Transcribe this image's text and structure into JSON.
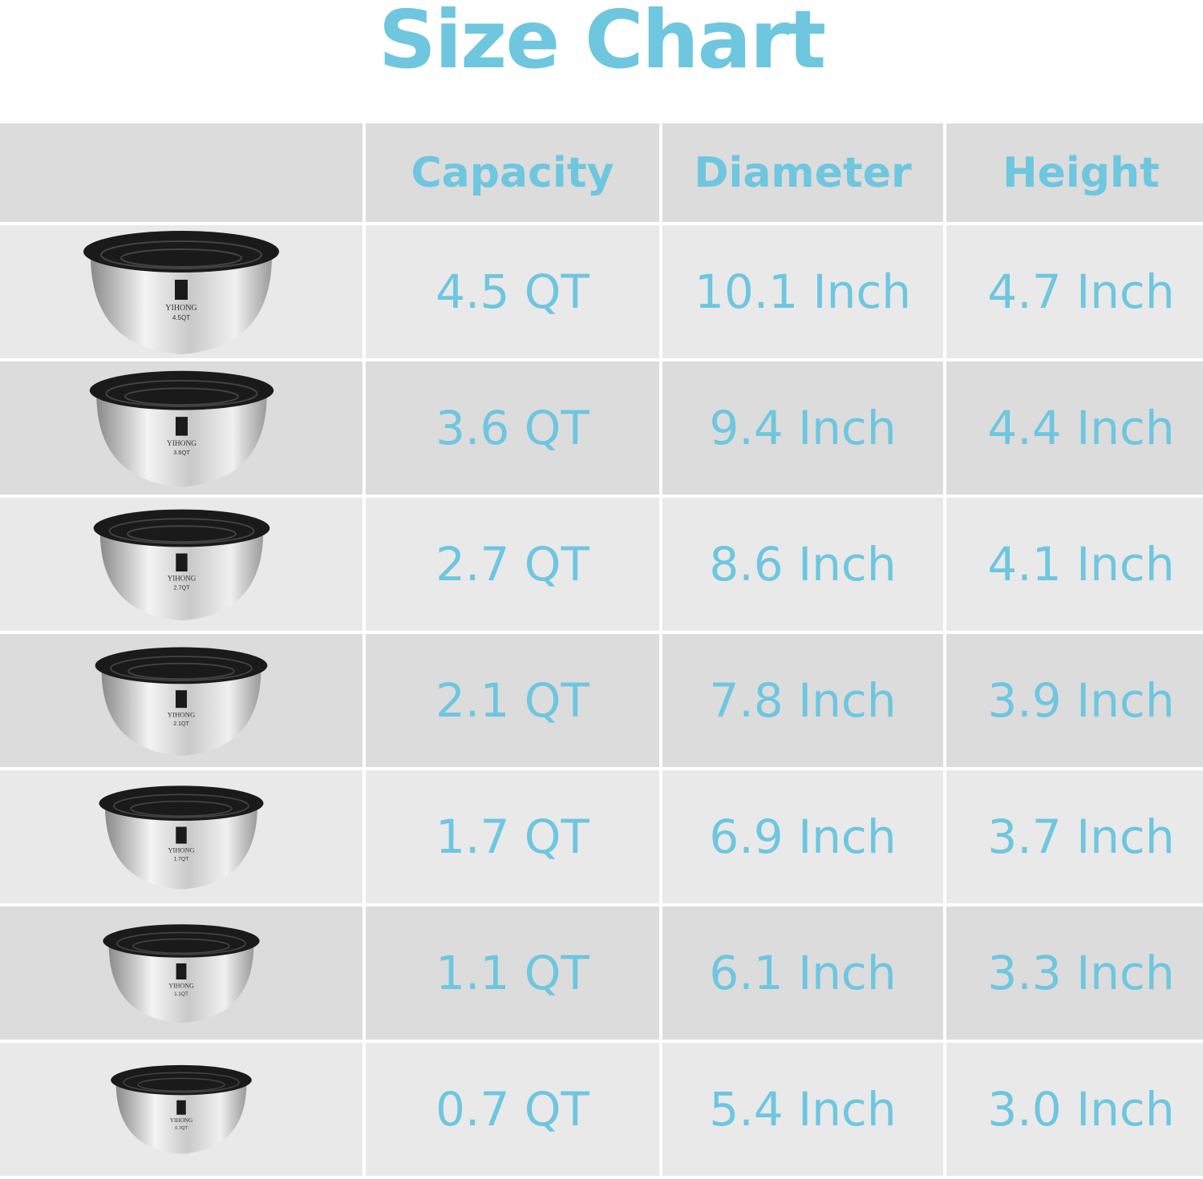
{
  "title": "Size Chart",
  "colors": {
    "accent": "#6ec6df",
    "row_light": "#e9e9e9",
    "row_dark": "#dcdcdc"
  },
  "chart_data": {
    "type": "table",
    "title": "Size Chart",
    "columns": [
      "",
      "Capacity",
      "Diameter",
      "Height"
    ],
    "rows": [
      {
        "image": "bowl-with-lid",
        "brand": "YIHONG",
        "bowl_label": "4.5QT",
        "capacity": "4.5 QT",
        "diameter": "10.1 Inch",
        "height": "4.7 Inch"
      },
      {
        "image": "bowl-with-lid",
        "brand": "YIHONG",
        "bowl_label": "3.6QT",
        "capacity": "3.6 QT",
        "diameter": "9.4 Inch",
        "height": "4.4 Inch"
      },
      {
        "image": "bowl-with-lid",
        "brand": "YIHONG",
        "bowl_label": "2.7QT",
        "capacity": "2.7 QT",
        "diameter": "8.6 Inch",
        "height": "4.1 Inch"
      },
      {
        "image": "bowl-with-lid",
        "brand": "YIHONG",
        "bowl_label": "2.1QT",
        "capacity": "2.1 QT",
        "diameter": "7.8 Inch",
        "height": "3.9 Inch"
      },
      {
        "image": "bowl-with-lid",
        "brand": "YIHONG",
        "bowl_label": "1.7QT",
        "capacity": "1.7 QT",
        "diameter": "6.9 Inch",
        "height": "3.7 Inch"
      },
      {
        "image": "bowl-with-lid",
        "brand": "YIHONG",
        "bowl_label": "1.1QT",
        "capacity": "1.1 QT",
        "diameter": "6.1 Inch",
        "height": "3.3 Inch"
      },
      {
        "image": "bowl-with-lid",
        "brand": "YIHONG",
        "bowl_label": "0.7QT",
        "capacity": "0.7 QT",
        "diameter": "5.4 Inch",
        "height": "3.0 Inch"
      }
    ]
  }
}
